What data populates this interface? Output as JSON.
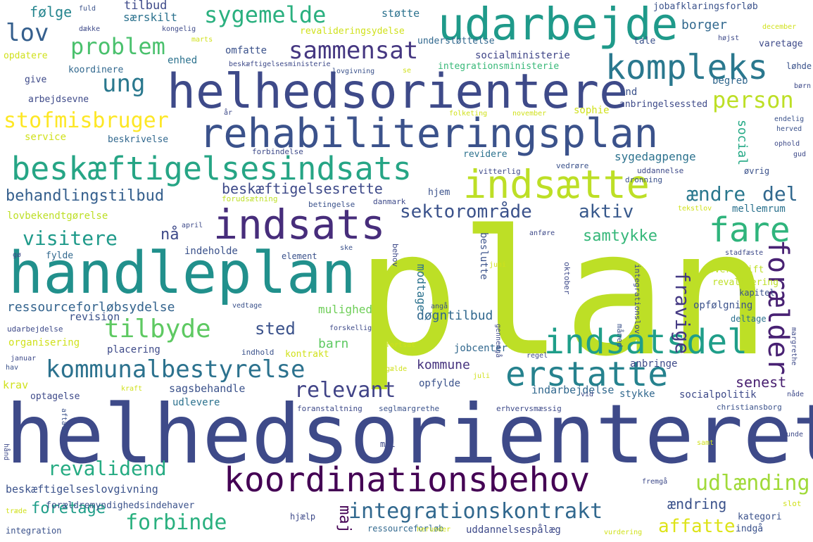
{
  "words": [
    {
      "text": "plan",
      "color": "#bddf26"
    },
    {
      "text": "helhedsorienteret",
      "color": "#3e4a89"
    },
    {
      "text": "helhedsorientere",
      "color": "#3e4a89"
    },
    {
      "text": "handleplan",
      "color": "#21908c"
    },
    {
      "text": "rehabiliteringsplan",
      "color": "#3b528b"
    },
    {
      "text": "udarbejde",
      "color": "#1f9a8a"
    },
    {
      "text": "koordinationsbehov",
      "color": "#440154"
    },
    {
      "text": "indsats",
      "color": "#472d7b"
    },
    {
      "text": "indsætte",
      "color": "#bddf26"
    },
    {
      "text": "beskæftigelsesindsats",
      "color": "#26a585"
    },
    {
      "text": "indsatsdel",
      "color": "#1f9e89"
    },
    {
      "text": "erstatte",
      "color": "#26828e"
    },
    {
      "text": "kompleks",
      "color": "#2a788e"
    },
    {
      "text": "kommunalbestyrelse",
      "color": "#2c728e"
    },
    {
      "text": "fare",
      "color": "#2fb47c"
    },
    {
      "text": "forælder",
      "color": "#482173"
    },
    {
      "text": "tilbyde",
      "color": "#5ec962"
    },
    {
      "text": "integrationskontrakt",
      "color": "#31688e"
    },
    {
      "text": "sammensat",
      "color": "#453781"
    },
    {
      "text": "problem",
      "color": "#4ac16d"
    },
    {
      "text": "sygemelde",
      "color": "#2ab07f"
    },
    {
      "text": "lov",
      "color": "#355f8d"
    },
    {
      "text": "ung",
      "color": "#2a788e"
    },
    {
      "text": "stofmisbruger",
      "color": "#fde725"
    },
    {
      "text": "person",
      "color": "#bddf26"
    },
    {
      "text": "behandlingstilbud",
      "color": "#355f8d"
    },
    {
      "text": "beskæftigelsesrette",
      "color": "#3e4a89"
    },
    {
      "text": "ændre",
      "color": "#2a788e"
    },
    {
      "text": "del",
      "color": "#31688e"
    },
    {
      "text": "sektorområde",
      "color": "#3b528b"
    },
    {
      "text": "aktiv",
      "color": "#38598c"
    },
    {
      "text": "visitere",
      "color": "#1f9a8a"
    },
    {
      "text": "nå",
      "color": "#3e4a89"
    },
    {
      "text": "samtykke",
      "color": "#35b779"
    },
    {
      "text": "fravige",
      "color": "#443983"
    },
    {
      "text": "relevant",
      "color": "#414487"
    },
    {
      "text": "sted",
      "color": "#3b528b"
    },
    {
      "text": "revalidend",
      "color": "#25ab82"
    },
    {
      "text": "forbinde",
      "color": "#2ab07f"
    },
    {
      "text": "foretage",
      "color": "#1f9e89"
    },
    {
      "text": "affatte",
      "color": "#dde318"
    },
    {
      "text": "udlænding",
      "color": "#a0da39"
    },
    {
      "text": "ændring",
      "color": "#3b528b"
    },
    {
      "text": "ressourceforløbsydelse",
      "color": "#33638d"
    },
    {
      "text": "kommune",
      "color": "#46337e"
    },
    {
      "text": "barn",
      "color": "#5ec962"
    },
    {
      "text": "senest",
      "color": "#481f70"
    },
    {
      "text": "døgntilbud",
      "color": "#31688e"
    },
    {
      "text": "mulighed",
      "color": "#6ece58"
    },
    {
      "text": "tilbud",
      "color": "#3e4a89"
    },
    {
      "text": "særskilt",
      "color": "#2c728e"
    },
    {
      "text": "følge",
      "color": "#25858e"
    },
    {
      "text": "støtte",
      "color": "#2c728e"
    },
    {
      "text": "jobafklaringsforløb",
      "color": "#3b528b"
    },
    {
      "text": "borger",
      "color": "#31688e"
    },
    {
      "text": "socialministerie",
      "color": "#404688"
    },
    {
      "text": "integrationsministerie",
      "color": "#37b878"
    },
    {
      "text": "revalideringsydelse",
      "color": "#d0e11c"
    },
    {
      "text": "understøttelse",
      "color": "#31688e"
    },
    {
      "text": "tale",
      "color": "#3b528b"
    },
    {
      "text": "varetage",
      "color": "#3e4a89"
    },
    {
      "text": "omfatte",
      "color": "#3b528b"
    },
    {
      "text": "enhed",
      "color": "#2c728e"
    },
    {
      "text": "koordinere",
      "color": "#31688e"
    },
    {
      "text": "opdatere",
      "color": "#d0e11c"
    },
    {
      "text": "give",
      "color": "#3e4a89"
    },
    {
      "text": "arbejdsevne",
      "color": "#3e4a89"
    },
    {
      "text": "service",
      "color": "#d0e11c"
    },
    {
      "text": "beskrivelse",
      "color": "#31688e"
    },
    {
      "text": "revidere",
      "color": "#2c728e"
    },
    {
      "text": "sygedagpenge",
      "color": "#2c728e"
    },
    {
      "text": "social",
      "color": "#22a884"
    },
    {
      "text": "sophie",
      "color": "#d0e11c"
    },
    {
      "text": "and",
      "color": "#3b528b"
    },
    {
      "text": "anbringelsessted",
      "color": "#3e4a89"
    },
    {
      "text": "begreb",
      "color": "#31688e"
    },
    {
      "text": "løhde",
      "color": "#3b528b"
    },
    {
      "text": "lovbekendtgørelse",
      "color": "#bddf26"
    },
    {
      "text": "mellemrum",
      "color": "#2c728e"
    },
    {
      "text": "indeholde",
      "color": "#3b528b"
    },
    {
      "text": "element",
      "color": "#3b528b"
    },
    {
      "text": "fylde",
      "color": "#31688e"
    },
    {
      "text": "revision",
      "color": "#3b528b"
    },
    {
      "text": "modtage",
      "color": "#2c728e"
    },
    {
      "text": "overskrift",
      "color": "#bddf26"
    },
    {
      "text": "revalidering",
      "color": "#bddf26"
    },
    {
      "text": "kapitel",
      "color": "#3b528b"
    },
    {
      "text": "opfølgning",
      "color": "#3b528b"
    },
    {
      "text": "organisering",
      "color": "#d0e11c"
    },
    {
      "text": "placering",
      "color": "#3e4a89"
    },
    {
      "text": "indhold",
      "color": "#3b528b"
    },
    {
      "text": "kontrakt",
      "color": "#d0e11c"
    },
    {
      "text": "jobcenter",
      "color": "#31688e"
    },
    {
      "text": "deltage",
      "color": "#2c728e"
    },
    {
      "text": "anbringe",
      "color": "#3e4a89"
    },
    {
      "text": "krav",
      "color": "#d0e11c"
    },
    {
      "text": "sagsbehandle",
      "color": "#3b528b"
    },
    {
      "text": "opfylde",
      "color": "#3b528b"
    },
    {
      "text": "indarbejdelse",
      "color": "#31688e"
    },
    {
      "text": "optagelse",
      "color": "#3e4a89"
    },
    {
      "text": "udlevere",
      "color": "#2c728e"
    },
    {
      "text": "stykke",
      "color": "#31688e"
    },
    {
      "text": "socialpolitik",
      "color": "#3e4a89"
    },
    {
      "text": "christiansborg",
      "color": "#3b528b"
    },
    {
      "text": "beskæftigelseslovgivning",
      "color": "#3b528b"
    },
    {
      "text": "forældremyndighedsindehaver",
      "color": "#3b528b"
    },
    {
      "text": "integration",
      "color": "#3b528b"
    },
    {
      "text": "ressourceforløb",
      "color": "#31688e"
    },
    {
      "text": "uddannelsespålæg",
      "color": "#3e4a89"
    },
    {
      "text": "kategori",
      "color": "#3b528b"
    },
    {
      "text": "indgå",
      "color": "#3b528b"
    },
    {
      "text": "maj",
      "color": "#440154"
    },
    {
      "text": "hjælp",
      "color": "#3e4a89"
    },
    {
      "text": "mål",
      "color": "#3e4a89"
    },
    {
      "text": "udarbejdelse",
      "color": "#3e4a89"
    },
    {
      "text": "hjem",
      "color": "#3b528b"
    },
    {
      "text": "danmark",
      "color": "#3e4a89"
    },
    {
      "text": "betingelse",
      "color": "#3b528b"
    },
    {
      "text": "forudsætning",
      "color": "#bddf26"
    },
    {
      "text": "dronning",
      "color": "#3b528b"
    },
    {
      "text": "uddannelse",
      "color": "#3e4a89"
    },
    {
      "text": "øvrig",
      "color": "#3b528b"
    },
    {
      "text": "vitterlig",
      "color": "#3e4a89"
    },
    {
      "text": "vedrøre",
      "color": "#3b528b"
    },
    {
      "text": "forbindelse",
      "color": "#3e4a89"
    },
    {
      "text": "ophold",
      "color": "#3e4a89"
    },
    {
      "text": "gud",
      "color": "#3e4a89"
    },
    {
      "text": "folketing",
      "color": "#d0e11c"
    },
    {
      "text": "november",
      "color": "#d0e11c"
    },
    {
      "text": "endelig",
      "color": "#3b528b"
    },
    {
      "text": "herved",
      "color": "#3b528b"
    },
    {
      "text": "år",
      "color": "#3e4a89"
    },
    {
      "text": "fuld",
      "color": "#3b528b"
    },
    {
      "text": "dække",
      "color": "#3e4a89"
    },
    {
      "text": "kongelig",
      "color": "#3e4a89"
    },
    {
      "text": "marts",
      "color": "#d0e11c"
    },
    {
      "text": "lovgivning",
      "color": "#3b528b"
    },
    {
      "text": "beskæftigelsesministerie",
      "color": "#3e4a89"
    },
    {
      "text": "se",
      "color": "#d0e11c"
    },
    {
      "text": "højst",
      "color": "#3e4a89"
    },
    {
      "text": "december",
      "color": "#d0e11c"
    },
    {
      "text": "børn",
      "color": "#3e4a89"
    },
    {
      "text": "april",
      "color": "#3e4a89"
    },
    {
      "text": "anføre",
      "color": "#3e4a89"
    },
    {
      "text": "behov",
      "color": "#3e4a89"
    },
    {
      "text": "beslutte",
      "color": "#3b528b"
    },
    {
      "text": "integrationslov",
      "color": "#3e4a89"
    },
    {
      "text": "juni",
      "color": "#d0e11c"
    },
    {
      "text": "oktober",
      "color": "#3e4a89"
    },
    {
      "text": "stadfæste",
      "color": "#3e4a89"
    },
    {
      "text": "ske",
      "color": "#3b528b"
    },
    {
      "text": "gø",
      "color": "#3e4a89"
    },
    {
      "text": "tekstlov",
      "color": "#d0e11c"
    },
    {
      "text": "vedtage",
      "color": "#3b528b"
    },
    {
      "text": "forskellig",
      "color": "#3e4a89"
    },
    {
      "text": "angå",
      "color": "#3b528b"
    },
    {
      "text": "gennemgå",
      "color": "#3e4a89"
    },
    {
      "text": "måned",
      "color": "#3b528b"
    },
    {
      "text": "fortsat",
      "color": "#d0e11c"
    },
    {
      "text": "regel",
      "color": "#3e4a89"
    },
    {
      "text": "margrethe",
      "color": "#3e4a89"
    },
    {
      "text": "januar",
      "color": "#3e4a89"
    },
    {
      "text": "hav",
      "color": "#3b528b"
    },
    {
      "text": "gælde",
      "color": "#d0e11c"
    },
    {
      "text": "kraft",
      "color": "#d0e11c"
    },
    {
      "text": "juli",
      "color": "#d0e11c"
    },
    {
      "text": "vid",
      "color": "#3e4a89"
    },
    {
      "text": "nåde",
      "color": "#3e4a89"
    },
    {
      "text": "aftale",
      "color": "#3b528b"
    },
    {
      "text": "foranstaltning",
      "color": "#3e4a89"
    },
    {
      "text": "seglmargrethe",
      "color": "#3b528b"
    },
    {
      "text": "erhvervsmæssig",
      "color": "#3e4a89"
    },
    {
      "text": "unde",
      "color": "#3e4a89"
    },
    {
      "text": "samt",
      "color": "#d0e11c"
    },
    {
      "text": "hånd",
      "color": "#3e4a89"
    },
    {
      "text": "fremgå",
      "color": "#3e4a89"
    },
    {
      "text": "slot",
      "color": "#d0e11c"
    },
    {
      "text": "træde",
      "color": "#d0e11c"
    },
    {
      "text": "herunder",
      "color": "#d0e11c"
    },
    {
      "text": "vurdering",
      "color": "#d0e11c"
    }
  ]
}
